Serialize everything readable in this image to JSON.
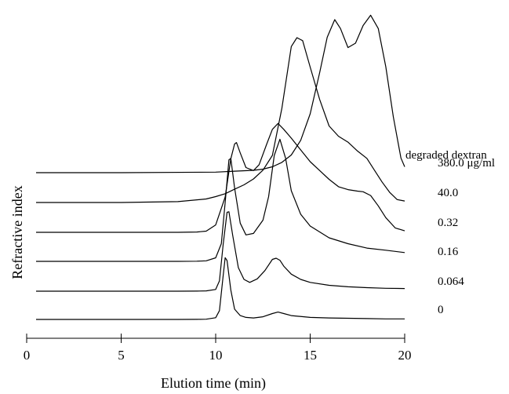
{
  "chart_data": {
    "type": "line",
    "xlabel": "Elution time (min)",
    "ylabel": "Refractive index",
    "xlim": [
      0,
      20
    ],
    "x_ticks": [
      "0",
      "5",
      "10",
      "15",
      "20"
    ],
    "legend_title": "degraded dextran",
    "grid": false,
    "series": [
      {
        "name": "0",
        "x": [
          0.5,
          8,
          9,
          9.5,
          10,
          10.2,
          10.4,
          10.5,
          10.6,
          10.8,
          11,
          11.3,
          11.6,
          12,
          12.5,
          13,
          13.3,
          13.6,
          14,
          15,
          16,
          17,
          18,
          19,
          20
        ],
        "values": [
          0,
          0,
          0.002,
          0.008,
          0.06,
          0.3,
          1.5,
          2.1,
          2.0,
          1.0,
          0.35,
          0.13,
          0.07,
          0.05,
          0.09,
          0.2,
          0.25,
          0.2,
          0.13,
          0.07,
          0.05,
          0.04,
          0.03,
          0.02,
          0.02
        ]
      },
      {
        "name": "0.064",
        "x": [
          0.5,
          8,
          9,
          9.5,
          10,
          10.2,
          10.4,
          10.6,
          10.7,
          10.9,
          11.2,
          11.5,
          11.8,
          12.2,
          12.6,
          13,
          13.2,
          13.4,
          13.6,
          14,
          14.5,
          15,
          16,
          17,
          18,
          19,
          20
        ],
        "values": [
          0,
          0,
          0.002,
          0.01,
          0.06,
          0.35,
          1.6,
          2.68,
          2.7,
          1.9,
          0.8,
          0.4,
          0.3,
          0.42,
          0.7,
          1.08,
          1.12,
          1.05,
          0.85,
          0.58,
          0.4,
          0.3,
          0.2,
          0.15,
          0.12,
          0.1,
          0.09
        ]
      },
      {
        "name": "0.16",
        "x": [
          0.5,
          8,
          9,
          9.5,
          10,
          10.3,
          10.5,
          10.7,
          10.8,
          11,
          11.3,
          11.6,
          12,
          12.5,
          12.8,
          13.1,
          13.4,
          13.7,
          14,
          14.5,
          15,
          16,
          17,
          18,
          19,
          20
        ],
        "values": [
          0,
          0,
          0.005,
          0.02,
          0.12,
          0.6,
          2.0,
          3.45,
          3.5,
          2.5,
          1.3,
          0.9,
          0.95,
          1.4,
          2.2,
          3.6,
          4.15,
          3.5,
          2.4,
          1.6,
          1.2,
          0.8,
          0.6,
          0.45,
          0.38,
          0.3
        ]
      },
      {
        "name": "0.32",
        "x": [
          0.5,
          8,
          9,
          9.5,
          10,
          10.5,
          10.8,
          11,
          11.1,
          11.3,
          11.6,
          12,
          12.3,
          12.7,
          13,
          13.3,
          13.6,
          14,
          14.5,
          15,
          15.5,
          16,
          16.5,
          17,
          17.5,
          17.8,
          18.2,
          18.6,
          19,
          19.5,
          20
        ],
        "values": [
          0,
          0,
          0.01,
          0.04,
          0.25,
          1.2,
          2.5,
          3.0,
          3.05,
          2.7,
          2.2,
          2.1,
          2.3,
          3.0,
          3.5,
          3.7,
          3.5,
          3.2,
          2.8,
          2.4,
          2.1,
          1.8,
          1.55,
          1.45,
          1.4,
          1.38,
          1.25,
          0.9,
          0.5,
          0.15,
          0.05
        ]
      },
      {
        "name": "40.0",
        "x": [
          0.5,
          5,
          8,
          9.5,
          10,
          10.5,
          11,
          11.5,
          12,
          12.5,
          13,
          13.5,
          14,
          14.3,
          14.6,
          15,
          15.5,
          16,
          16.5,
          17,
          17.5,
          18,
          18.4,
          18.8,
          19.2,
          19.6,
          20
        ],
        "values": [
          0,
          0,
          0.03,
          0.12,
          0.2,
          0.3,
          0.45,
          0.6,
          0.8,
          1.1,
          1.6,
          3.2,
          5.3,
          5.6,
          5.5,
          4.6,
          3.5,
          2.6,
          2.25,
          2.05,
          1.75,
          1.5,
          1.1,
          0.7,
          0.35,
          0.1,
          0.05
        ]
      },
      {
        "name": "380.0 μg/ml",
        "x": [
          0.5,
          5,
          10,
          11,
          12,
          12.5,
          13,
          13.5,
          14,
          14.5,
          15,
          15.5,
          15.9,
          16.3,
          16.6,
          17,
          17.4,
          17.8,
          18.2,
          18.6,
          19,
          19.4,
          19.8,
          20
        ],
        "values": [
          0,
          0,
          0.02,
          0.05,
          0.08,
          0.12,
          0.2,
          0.35,
          0.6,
          1.1,
          2.0,
          3.4,
          4.6,
          5.2,
          4.9,
          4.25,
          4.4,
          5.0,
          5.35,
          4.9,
          3.6,
          1.9,
          0.5,
          0.2
        ]
      }
    ]
  }
}
